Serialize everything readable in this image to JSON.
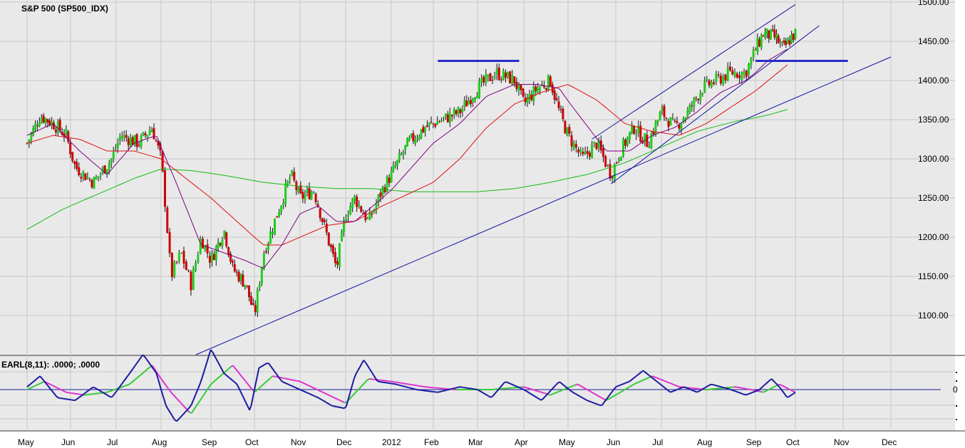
{
  "chart_data": [
    {
      "type": "candlestick",
      "title": "S&P 500 (SP500_IDX)",
      "yticks": [
        "1100.00",
        "1150.00",
        "1200.00",
        "1250.00",
        "1300.00",
        "1350.00",
        "1400.00",
        "1450.00",
        "1500.00"
      ],
      "ylim": [
        1050,
        1500
      ],
      "x_labels": [
        "May",
        "Jun",
        "Jul",
        "Aug",
        "Sep",
        "Oct",
        "Nov",
        "Dec",
        "2012",
        "Feb",
        "Mar",
        "Apr",
        "May",
        "Jun",
        "Jul",
        "Aug",
        "Sep",
        "Oct",
        "Nov",
        "Dec"
      ],
      "grid": true,
      "colors": {
        "up": "#22cc22",
        "down": "#cc0000",
        "wick": "#000000",
        "ma_short": "#800080",
        "ma_mid": "#dd1111",
        "ma_long": "#11bb11",
        "trendline": "#1010a0",
        "resistance": "#2a2acc"
      },
      "close_series": [
        {
          "m": 0.0,
          "v": 1320
        },
        {
          "m": 0.3,
          "v": 1355
        },
        {
          "m": 0.6,
          "v": 1345
        },
        {
          "m": 0.9,
          "v": 1330
        },
        {
          "m": 1.1,
          "v": 1290
        },
        {
          "m": 1.5,
          "v": 1270
        },
        {
          "m": 1.9,
          "v": 1300
        },
        {
          "m": 2.1,
          "v": 1330
        },
        {
          "m": 2.5,
          "v": 1320
        },
        {
          "m": 2.8,
          "v": 1340
        },
        {
          "m": 3.0,
          "v": 1300
        },
        {
          "m": 3.1,
          "v": 1230
        },
        {
          "m": 3.2,
          "v": 1150
        },
        {
          "m": 3.4,
          "v": 1180
        },
        {
          "m": 3.6,
          "v": 1140
        },
        {
          "m": 3.8,
          "v": 1200
        },
        {
          "m": 4.0,
          "v": 1170
        },
        {
          "m": 4.3,
          "v": 1210
        },
        {
          "m": 4.5,
          "v": 1160
        },
        {
          "m": 4.8,
          "v": 1140
        },
        {
          "m": 5.0,
          "v": 1100
        },
        {
          "m": 5.2,
          "v": 1180
        },
        {
          "m": 5.5,
          "v": 1230
        },
        {
          "m": 5.8,
          "v": 1280
        },
        {
          "m": 6.0,
          "v": 1250
        },
        {
          "m": 6.3,
          "v": 1260
        },
        {
          "m": 6.6,
          "v": 1200
        },
        {
          "m": 6.8,
          "v": 1160
        },
        {
          "m": 7.0,
          "v": 1230
        },
        {
          "m": 7.2,
          "v": 1250
        },
        {
          "m": 7.5,
          "v": 1220
        },
        {
          "m": 7.8,
          "v": 1260
        },
        {
          "m": 8.0,
          "v": 1280
        },
        {
          "m": 8.4,
          "v": 1320
        },
        {
          "m": 8.8,
          "v": 1340
        },
        {
          "m": 9.2,
          "v": 1350
        },
        {
          "m": 9.6,
          "v": 1360
        },
        {
          "m": 10.0,
          "v": 1390
        },
        {
          "m": 10.4,
          "v": 1410
        },
        {
          "m": 10.8,
          "v": 1400
        },
        {
          "m": 11.0,
          "v": 1370
        },
        {
          "m": 11.3,
          "v": 1390
        },
        {
          "m": 11.6,
          "v": 1400
        },
        {
          "m": 11.8,
          "v": 1360
        },
        {
          "m": 12.0,
          "v": 1330
        },
        {
          "m": 12.3,
          "v": 1300
        },
        {
          "m": 12.6,
          "v": 1320
        },
        {
          "m": 12.9,
          "v": 1280
        },
        {
          "m": 13.1,
          "v": 1310
        },
        {
          "m": 13.4,
          "v": 1340
        },
        {
          "m": 13.7,
          "v": 1320
        },
        {
          "m": 14.0,
          "v": 1360
        },
        {
          "m": 14.3,
          "v": 1340
        },
        {
          "m": 14.6,
          "v": 1360
        },
        {
          "m": 14.9,
          "v": 1390
        },
        {
          "m": 15.2,
          "v": 1400
        },
        {
          "m": 15.5,
          "v": 1410
        },
        {
          "m": 15.8,
          "v": 1410
        },
        {
          "m": 16.0,
          "v": 1440
        },
        {
          "m": 16.2,
          "v": 1460
        },
        {
          "m": 16.5,
          "v": 1455
        },
        {
          "m": 16.7,
          "v": 1440
        },
        {
          "m": 16.9,
          "v": 1455
        },
        {
          "m": 17.0,
          "v": 1460
        }
      ],
      "ma_short": [
        {
          "m": 0.0,
          "v": 1330
        },
        {
          "m": 0.6,
          "v": 1345
        },
        {
          "m": 1.2,
          "v": 1310
        },
        {
          "m": 1.8,
          "v": 1280
        },
        {
          "m": 2.4,
          "v": 1320
        },
        {
          "m": 2.9,
          "v": 1330
        },
        {
          "m": 3.3,
          "v": 1270
        },
        {
          "m": 3.8,
          "v": 1190
        },
        {
          "m": 4.3,
          "v": 1180
        },
        {
          "m": 4.8,
          "v": 1170
        },
        {
          "m": 5.2,
          "v": 1160
        },
        {
          "m": 5.6,
          "v": 1190
        },
        {
          "m": 6.0,
          "v": 1230
        },
        {
          "m": 6.4,
          "v": 1240
        },
        {
          "m": 6.8,
          "v": 1220
        },
        {
          "m": 7.2,
          "v": 1220
        },
        {
          "m": 7.6,
          "v": 1240
        },
        {
          "m": 8.0,
          "v": 1260
        },
        {
          "m": 8.5,
          "v": 1290
        },
        {
          "m": 9.0,
          "v": 1320
        },
        {
          "m": 9.6,
          "v": 1345
        },
        {
          "m": 10.2,
          "v": 1380
        },
        {
          "m": 10.8,
          "v": 1395
        },
        {
          "m": 11.3,
          "v": 1395
        },
        {
          "m": 11.8,
          "v": 1390
        },
        {
          "m": 12.3,
          "v": 1350
        },
        {
          "m": 12.8,
          "v": 1310
        },
        {
          "m": 13.3,
          "v": 1310
        },
        {
          "m": 13.8,
          "v": 1330
        },
        {
          "m": 14.3,
          "v": 1340
        },
        {
          "m": 14.8,
          "v": 1360
        },
        {
          "m": 15.3,
          "v": 1385
        },
        {
          "m": 15.8,
          "v": 1400
        },
        {
          "m": 16.3,
          "v": 1425
        },
        {
          "m": 16.8,
          "v": 1440
        }
      ],
      "ma_mid": [
        {
          "m": 0.0,
          "v": 1320
        },
        {
          "m": 0.6,
          "v": 1330
        },
        {
          "m": 1.2,
          "v": 1325
        },
        {
          "m": 1.8,
          "v": 1310
        },
        {
          "m": 2.4,
          "v": 1310
        },
        {
          "m": 3.0,
          "v": 1300
        },
        {
          "m": 3.6,
          "v": 1270
        },
        {
          "m": 4.2,
          "v": 1240
        },
        {
          "m": 4.8,
          "v": 1210
        },
        {
          "m": 5.2,
          "v": 1190
        },
        {
          "m": 5.6,
          "v": 1190
        },
        {
          "m": 6.0,
          "v": 1200
        },
        {
          "m": 6.6,
          "v": 1215
        },
        {
          "m": 7.2,
          "v": 1220
        },
        {
          "m": 7.8,
          "v": 1240
        },
        {
          "m": 8.4,
          "v": 1255
        },
        {
          "m": 9.0,
          "v": 1270
        },
        {
          "m": 9.6,
          "v": 1300
        },
        {
          "m": 10.2,
          "v": 1340
        },
        {
          "m": 10.8,
          "v": 1370
        },
        {
          "m": 11.4,
          "v": 1385
        },
        {
          "m": 12.0,
          "v": 1395
        },
        {
          "m": 12.6,
          "v": 1375
        },
        {
          "m": 13.2,
          "v": 1345
        },
        {
          "m": 13.8,
          "v": 1335
        },
        {
          "m": 14.4,
          "v": 1330
        },
        {
          "m": 15.0,
          "v": 1345
        },
        {
          "m": 15.6,
          "v": 1370
        },
        {
          "m": 16.2,
          "v": 1395
        },
        {
          "m": 16.8,
          "v": 1420
        }
      ],
      "ma_long": [
        {
          "m": 0.0,
          "v": 1210
        },
        {
          "m": 0.8,
          "v": 1235
        },
        {
          "m": 1.6,
          "v": 1255
        },
        {
          "m": 2.4,
          "v": 1275
        },
        {
          "m": 3.0,
          "v": 1287
        },
        {
          "m": 3.6,
          "v": 1285
        },
        {
          "m": 4.4,
          "v": 1278
        },
        {
          "m": 5.2,
          "v": 1270
        },
        {
          "m": 6.0,
          "v": 1265
        },
        {
          "m": 6.8,
          "v": 1262
        },
        {
          "m": 7.6,
          "v": 1262
        },
        {
          "m": 8.4,
          "v": 1258
        },
        {
          "m": 9.2,
          "v": 1258
        },
        {
          "m": 10.0,
          "v": 1258
        },
        {
          "m": 10.8,
          "v": 1262
        },
        {
          "m": 11.6,
          "v": 1270
        },
        {
          "m": 12.4,
          "v": 1280
        },
        {
          "m": 13.2,
          "v": 1295
        },
        {
          "m": 14.0,
          "v": 1315
        },
        {
          "m": 14.8,
          "v": 1335
        },
        {
          "m": 15.6,
          "v": 1348
        },
        {
          "m": 16.4,
          "v": 1357
        },
        {
          "m": 16.8,
          "v": 1363
        }
      ]
    },
    {
      "type": "line",
      "title": "EARL(8,11): .0000; .0000",
      "yticks": [
        "0"
      ],
      "x_labels": [
        "May",
        "Jun",
        "Jul",
        "Aug",
        "Sep",
        "Oct",
        "Nov",
        "Dec",
        "2012",
        "Feb",
        "Mar",
        "Apr",
        "May",
        "Jun",
        "Jul",
        "Aug",
        "Sep",
        "Oct",
        "Nov",
        "Dec"
      ],
      "series": [
        {
          "values": [
            {
              "m": 0.0,
              "v": 0.1
            },
            {
              "m": 0.3,
              "v": 0.5
            },
            {
              "m": 0.7,
              "v": -0.3
            },
            {
              "m": 1.1,
              "v": -0.4
            },
            {
              "m": 1.5,
              "v": 0.1
            },
            {
              "m": 1.9,
              "v": -0.3
            },
            {
              "m": 2.3,
              "v": 0.6
            },
            {
              "m": 2.6,
              "v": 1.3
            },
            {
              "m": 2.9,
              "v": 0.6
            },
            {
              "m": 3.1,
              "v": -0.6
            },
            {
              "m": 3.3,
              "v": -1.2
            },
            {
              "m": 3.6,
              "v": -0.6
            },
            {
              "m": 3.8,
              "v": 0.3
            },
            {
              "m": 4.0,
              "v": 1.5
            },
            {
              "m": 4.3,
              "v": 0.6
            },
            {
              "m": 4.6,
              "v": 0.2
            },
            {
              "m": 4.9,
              "v": -0.8
            },
            {
              "m": 5.1,
              "v": 0.8
            },
            {
              "m": 5.3,
              "v": 1.0
            },
            {
              "m": 5.6,
              "v": 0.3
            },
            {
              "m": 6.0,
              "v": 0.0
            },
            {
              "m": 6.4,
              "v": -0.3
            },
            {
              "m": 6.7,
              "v": -0.6
            },
            {
              "m": 7.0,
              "v": -0.7
            },
            {
              "m": 7.2,
              "v": 0.5
            },
            {
              "m": 7.4,
              "v": 1.1
            },
            {
              "m": 7.7,
              "v": 0.3
            },
            {
              "m": 8.1,
              "v": 0.2
            },
            {
              "m": 8.6,
              "v": 0.0
            },
            {
              "m": 9.1,
              "v": -0.1
            },
            {
              "m": 9.6,
              "v": 0.1
            },
            {
              "m": 10.0,
              "v": 0.0
            },
            {
              "m": 10.3,
              "v": -0.3
            },
            {
              "m": 10.6,
              "v": 0.3
            },
            {
              "m": 11.0,
              "v": 0.0
            },
            {
              "m": 11.4,
              "v": -0.4
            },
            {
              "m": 11.8,
              "v": 0.3
            },
            {
              "m": 12.1,
              "v": -0.1
            },
            {
              "m": 12.4,
              "v": -0.4
            },
            {
              "m": 12.7,
              "v": -0.6
            },
            {
              "m": 13.0,
              "v": 0.1
            },
            {
              "m": 13.3,
              "v": 0.3
            },
            {
              "m": 13.6,
              "v": 0.7
            },
            {
              "m": 13.9,
              "v": 0.3
            },
            {
              "m": 14.2,
              "v": -0.1
            },
            {
              "m": 14.5,
              "v": 0.1
            },
            {
              "m": 14.8,
              "v": -0.1
            },
            {
              "m": 15.1,
              "v": 0.2
            },
            {
              "m": 15.5,
              "v": 0.0
            },
            {
              "m": 15.8,
              "v": -0.2
            },
            {
              "m": 16.1,
              "v": 0.0
            },
            {
              "m": 16.4,
              "v": 0.4
            },
            {
              "m": 16.6,
              "v": 0.1
            },
            {
              "m": 16.8,
              "v": -0.3
            },
            {
              "m": 17.0,
              "v": -0.1
            }
          ]
        },
        {
          "values": [
            {
              "m": 0.0,
              "v": 0.0
            },
            {
              "m": 0.4,
              "v": 0.3
            },
            {
              "m": 0.9,
              "v": -0.1
            },
            {
              "m": 1.3,
              "v": -0.2
            },
            {
              "m": 1.8,
              "v": -0.1
            },
            {
              "m": 2.3,
              "v": 0.2
            },
            {
              "m": 2.8,
              "v": 0.9
            },
            {
              "m": 3.2,
              "v": -0.1
            },
            {
              "m": 3.6,
              "v": -0.9
            },
            {
              "m": 4.0,
              "v": 0.2
            },
            {
              "m": 4.5,
              "v": 0.9
            },
            {
              "m": 5.0,
              "v": -0.1
            },
            {
              "m": 5.4,
              "v": 0.5
            },
            {
              "m": 6.0,
              "v": 0.3
            },
            {
              "m": 6.5,
              "v": -0.1
            },
            {
              "m": 7.0,
              "v": -0.5
            },
            {
              "m": 7.5,
              "v": 0.4
            },
            {
              "m": 8.0,
              "v": 0.3
            },
            {
              "m": 8.8,
              "v": 0.1
            },
            {
              "m": 9.5,
              "v": 0.0
            },
            {
              "m": 10.3,
              "v": 0.0
            },
            {
              "m": 11.0,
              "v": 0.1
            },
            {
              "m": 11.6,
              "v": -0.2
            },
            {
              "m": 12.2,
              "v": 0.2
            },
            {
              "m": 12.8,
              "v": -0.4
            },
            {
              "m": 13.4,
              "v": 0.2
            },
            {
              "m": 13.8,
              "v": 0.5
            },
            {
              "m": 14.4,
              "v": 0.1
            },
            {
              "m": 15.0,
              "v": 0.0
            },
            {
              "m": 15.6,
              "v": 0.1
            },
            {
              "m": 16.2,
              "v": -0.1
            },
            {
              "m": 16.6,
              "v": 0.2
            },
            {
              "m": 17.0,
              "v": -0.1
            }
          ]
        }
      ]
    }
  ]
}
